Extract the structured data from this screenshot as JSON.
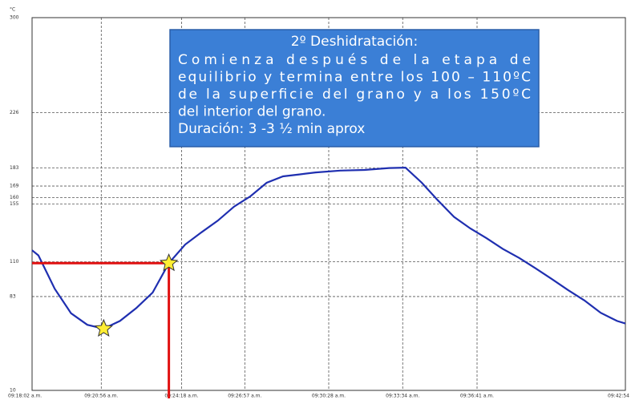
{
  "chart_data": {
    "type": "line",
    "y_unit": "°C",
    "ylim": [
      10,
      300
    ],
    "yticks": [
      10,
      83,
      110,
      155,
      160,
      169,
      183,
      226,
      300
    ],
    "xlim": [
      "09:18:02",
      "09:42:54"
    ],
    "xticks": [
      {
        "value": "09:18:02",
        "label": "09:18:02 a.m."
      },
      {
        "value": "09:20:56",
        "label": "09:20:56 a.m."
      },
      {
        "value": "09:24:18",
        "label": "09:24:18 a.m."
      },
      {
        "value": "09:26:57",
        "label": "09:26:57 a.m."
      },
      {
        "value": "09:30:28",
        "label": "09:30:28 a.m."
      },
      {
        "value": "09:33:34",
        "label": "09:33:34 a.m."
      },
      {
        "value": "09:36:41",
        "label": "09:36:41 a.m."
      },
      {
        "value": "09:42:54",
        "label": "09:42:54"
      }
    ],
    "grid": true,
    "series": [
      {
        "color": "#1f2fb0",
        "x": [
          "09:18:02",
          "09:18:18",
          "09:18:59",
          "09:19:40",
          "09:20:21",
          "09:21:02",
          "09:21:43",
          "09:22:24",
          "09:23:05",
          "09:23:46",
          "09:24:27",
          "09:25:08",
          "09:25:49",
          "09:26:30",
          "09:27:11",
          "09:27:52",
          "09:28:33",
          "09:29:14",
          "09:29:55",
          "09:30:57",
          "09:31:58",
          "09:33:00",
          "09:33:41",
          "09:34:22",
          "09:35:02",
          "09:35:43",
          "09:36:24",
          "09:37:05",
          "09:37:46",
          "09:38:27",
          "09:39:08",
          "09:39:49",
          "09:40:30",
          "09:41:11",
          "09:41:52",
          "09:42:33",
          "09:42:54"
        ],
        "values": [
          119,
          115,
          89,
          70,
          61,
          58,
          64,
          74,
          86,
          109,
          123.5,
          133,
          142,
          153,
          161,
          171.5,
          176.5,
          178,
          179.6,
          181,
          181.5,
          183,
          183.3,
          171.5,
          158,
          145,
          136,
          128.4,
          120,
          113,
          105,
          96.6,
          88,
          80,
          70.4,
          64,
          62
        ]
      }
    ],
    "markers": [
      {
        "x": "09:21:02",
        "y": 58
      },
      {
        "x": "09:23:46",
        "y": 109
      }
    ],
    "annotation": {
      "title": "2º Deshidratación:",
      "lines": [
        "Comienza después de la etapa de",
        "equilibrio y termina entre los 100 – 110ºC",
        "de la superficie del grano y a los 150ºC",
        "del interior del grano.",
        "Duración:  3 -3 ½ min aprox"
      ]
    }
  }
}
